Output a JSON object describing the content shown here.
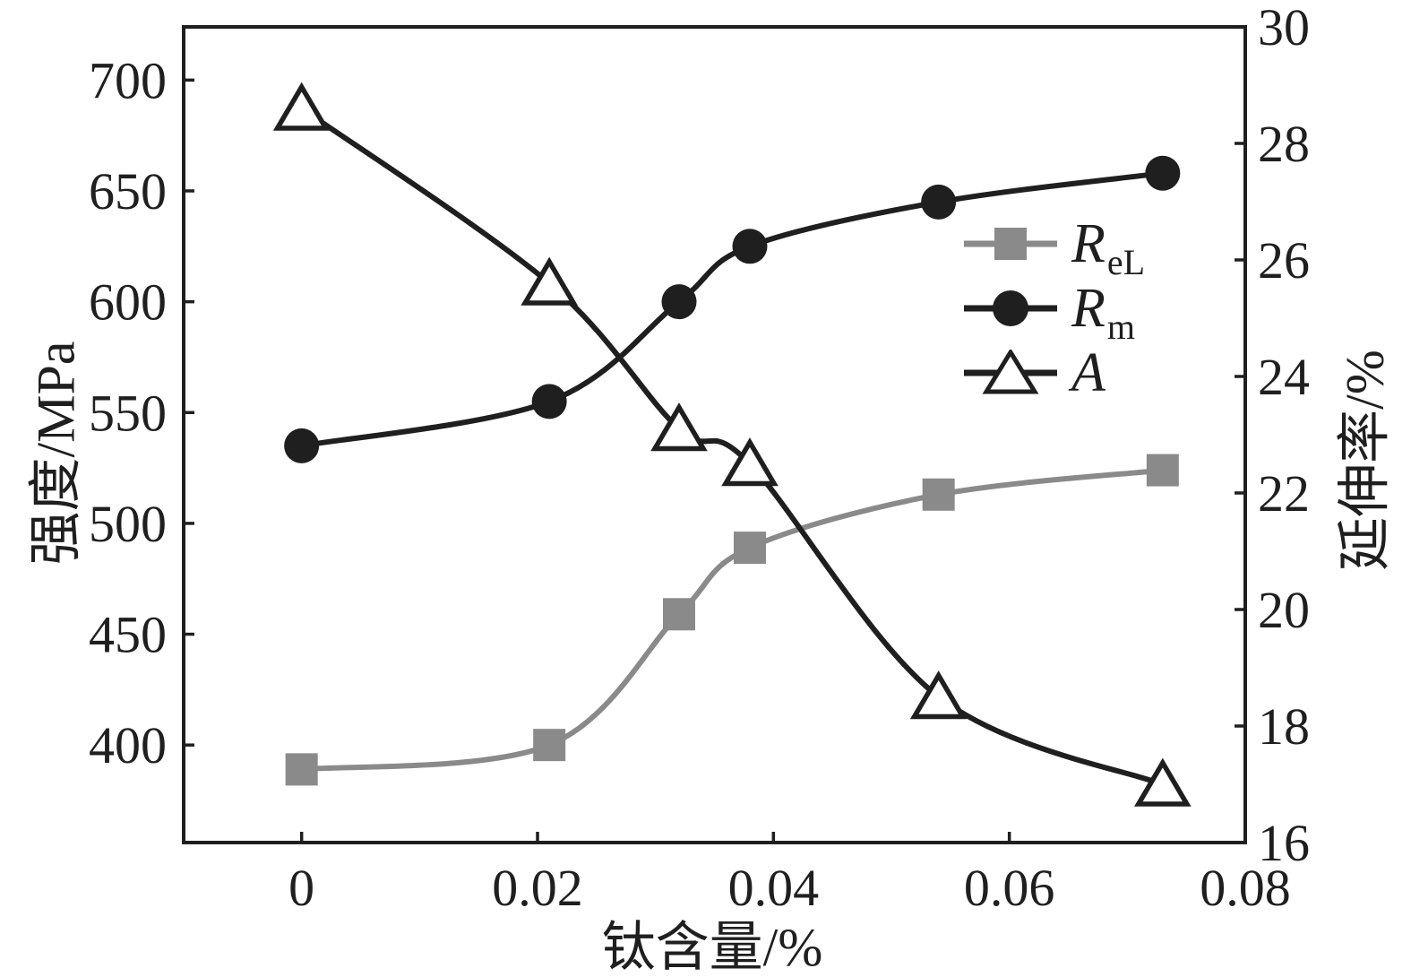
{
  "chart_data": {
    "type": "line",
    "x": [
      0,
      0.021,
      0.032,
      0.038,
      0.054,
      0.073
    ],
    "series": [
      {
        "name": "ReL",
        "axis": "left",
        "marker": "square",
        "color": "#8a8a8a",
        "line_color": "#8a8a8a",
        "values": [
          389,
          400,
          459,
          489,
          513,
          524
        ]
      },
      {
        "name": "Rm",
        "axis": "left",
        "marker": "circle",
        "color": "#1f1f1f",
        "line_color": "#1f1f1f",
        "values": [
          535,
          555,
          600,
          625,
          645,
          658
        ]
      },
      {
        "name": "A",
        "axis": "right",
        "marker": "triangle",
        "color": "#ffffff",
        "line_color": "#1f1f1f",
        "values": [
          28.6,
          25.6,
          23.1,
          22.5,
          18.5,
          17.0
        ]
      }
    ],
    "title": "",
    "xlabel": "钛含量/%",
    "ylabel_left": "强度/MPa",
    "ylabel_right": "延伸率/%",
    "xlim": [
      -0.01,
      0.08
    ],
    "x_ticks": [
      0,
      0.02,
      0.04,
      0.06,
      0.08
    ],
    "x_tick_labels": [
      "0",
      "0.02",
      "0.04",
      "0.06",
      "0.08"
    ],
    "left_lim": [
      356,
      724
    ],
    "left_ticks": [
      400,
      450,
      500,
      550,
      600,
      650,
      700
    ],
    "left_tick_labels": [
      "400",
      "450",
      "500",
      "550",
      "600",
      "650",
      "700"
    ],
    "right_lim": [
      16,
      30
    ],
    "right_ticks": [
      16,
      18,
      20,
      22,
      24,
      26,
      28,
      30
    ],
    "right_tick_labels": [
      "16",
      "18",
      "20",
      "22",
      "24",
      "26",
      "28",
      "30"
    ],
    "grid": false,
    "legend_position": "center-right",
    "legend": [
      {
        "label": "R",
        "sub": "eL"
      },
      {
        "label": "R",
        "sub": "m"
      },
      {
        "label": "A",
        "sub": ""
      }
    ],
    "axis_color": "#1f1f1f"
  }
}
